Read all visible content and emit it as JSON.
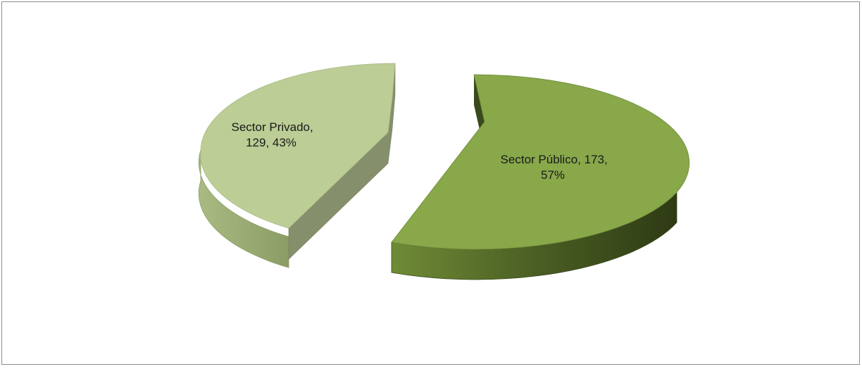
{
  "chart_data": {
    "type": "pie",
    "style": "3d-exploded",
    "title": "",
    "series": [
      {
        "values": [
          129,
          173
        ],
        "categories": [
          "Sector Privado",
          "Sector Público"
        ],
        "percent_labels": [
          "43%",
          "57%"
        ]
      }
    ],
    "data_labels": [
      [
        "Sector Privado,",
        "129, 43%"
      ],
      [
        "Sector Público, 173,",
        "57%"
      ]
    ],
    "colors": {
      "privado_top": "#bccd95",
      "privado_side": "#98a870",
      "privado_cut": "#858f6b",
      "publico_top": "#88a84a",
      "publico_side": "#4b5f23",
      "publico_cut": "#3a4a1c"
    },
    "legend": "none"
  }
}
